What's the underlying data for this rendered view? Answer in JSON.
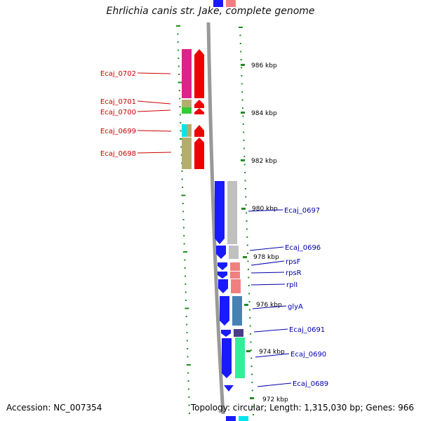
{
  "title": "Ehrlichia canis str. Jake, complete genome",
  "footer": {
    "accession": "Accession: NC_007354",
    "summary": "Topology: circular; Length: 1,315,030 bp; Genes: 966"
  },
  "colors": {
    "backbone": "#999999",
    "tick": "#228b22",
    "reverse_label": "#cc0000",
    "forward_label": "#0000aa"
  },
  "scale_labels": [
    "986 kbp",
    "984 kbp",
    "982 kbp",
    "980 kbp",
    "978 kbp",
    "976 kbp",
    "974 kbp",
    "972 kbp"
  ],
  "genes_reverse": [
    "Ecaj_0702",
    "Ecaj_0701",
    "Ecaj_0700",
    "Ecaj_0699",
    "Ecaj_0698"
  ],
  "genes_forward": [
    "Ecaj_0697",
    "Ecaj_0696",
    "rpsF",
    "rpsR",
    "rplI",
    "glyA",
    "Ecaj_0691",
    "Ecaj_0690",
    "Ecaj_0689"
  ]
}
